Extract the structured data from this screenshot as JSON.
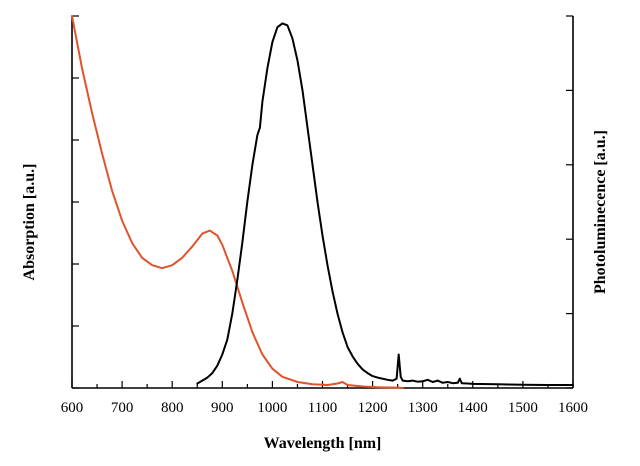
{
  "chart_data": {
    "type": "line",
    "title": "",
    "xlabel": "Wavelength [nm]",
    "ylabel_left": "Absorption [a.u.]",
    "ylabel_right": "Photoluminecence [a.u.]",
    "xlim": [
      600,
      1600
    ],
    "ylim": [
      0,
      1
    ],
    "x_ticks": [
      600,
      700,
      800,
      900,
      1000,
      1100,
      1200,
      1300,
      1400,
      1500,
      1600
    ],
    "y_left_minor_ticks": 6,
    "y_right_minor_ticks": 5,
    "grid": false,
    "legend": "none",
    "series": [
      {
        "color": "#e0532b",
        "axis": "left",
        "x": [
          600,
          620,
          640,
          660,
          680,
          700,
          720,
          740,
          760,
          780,
          800,
          820,
          840,
          860,
          875,
          890,
          900,
          920,
          940,
          960,
          980,
          1000,
          1020,
          1050,
          1080,
          1110,
          1130,
          1140,
          1150,
          1180,
          1210,
          1250,
          1260
        ],
        "y": [
          1.0,
          0.86,
          0.74,
          0.63,
          0.53,
          0.45,
          0.39,
          0.35,
          0.33,
          0.322,
          0.33,
          0.35,
          0.38,
          0.415,
          0.423,
          0.41,
          0.385,
          0.315,
          0.23,
          0.15,
          0.09,
          0.052,
          0.03,
          0.016,
          0.01,
          0.008,
          0.012,
          0.016,
          0.008,
          0.004,
          0.002,
          0.001,
          0.0
        ]
      },
      {
        "color": "#000000",
        "axis": "right",
        "x": [
          850,
          860,
          870,
          880,
          890,
          900,
          910,
          920,
          930,
          940,
          950,
          960,
          970,
          975,
          980,
          990,
          1000,
          1010,
          1020,
          1030,
          1040,
          1050,
          1060,
          1070,
          1080,
          1090,
          1100,
          1110,
          1120,
          1130,
          1140,
          1150,
          1160,
          1170,
          1180,
          1190,
          1200,
          1210,
          1220,
          1230,
          1240,
          1248,
          1252,
          1256,
          1260,
          1270,
          1280,
          1290,
          1300,
          1310,
          1320,
          1330,
          1340,
          1350,
          1360,
          1370,
          1374,
          1378,
          1390,
          1400,
          1450,
          1500,
          1550,
          1600
        ],
        "y": [
          0.012,
          0.02,
          0.028,
          0.04,
          0.06,
          0.09,
          0.13,
          0.2,
          0.29,
          0.39,
          0.5,
          0.6,
          0.68,
          0.7,
          0.77,
          0.86,
          0.93,
          0.97,
          0.98,
          0.975,
          0.94,
          0.88,
          0.8,
          0.7,
          0.6,
          0.5,
          0.41,
          0.33,
          0.26,
          0.2,
          0.15,
          0.11,
          0.085,
          0.065,
          0.05,
          0.04,
          0.032,
          0.028,
          0.025,
          0.022,
          0.02,
          0.025,
          0.09,
          0.03,
          0.02,
          0.018,
          0.02,
          0.017,
          0.018,
          0.022,
          0.016,
          0.02,
          0.014,
          0.016,
          0.013,
          0.014,
          0.025,
          0.013,
          0.012,
          0.011,
          0.01,
          0.009,
          0.008,
          0.008
        ]
      }
    ]
  }
}
